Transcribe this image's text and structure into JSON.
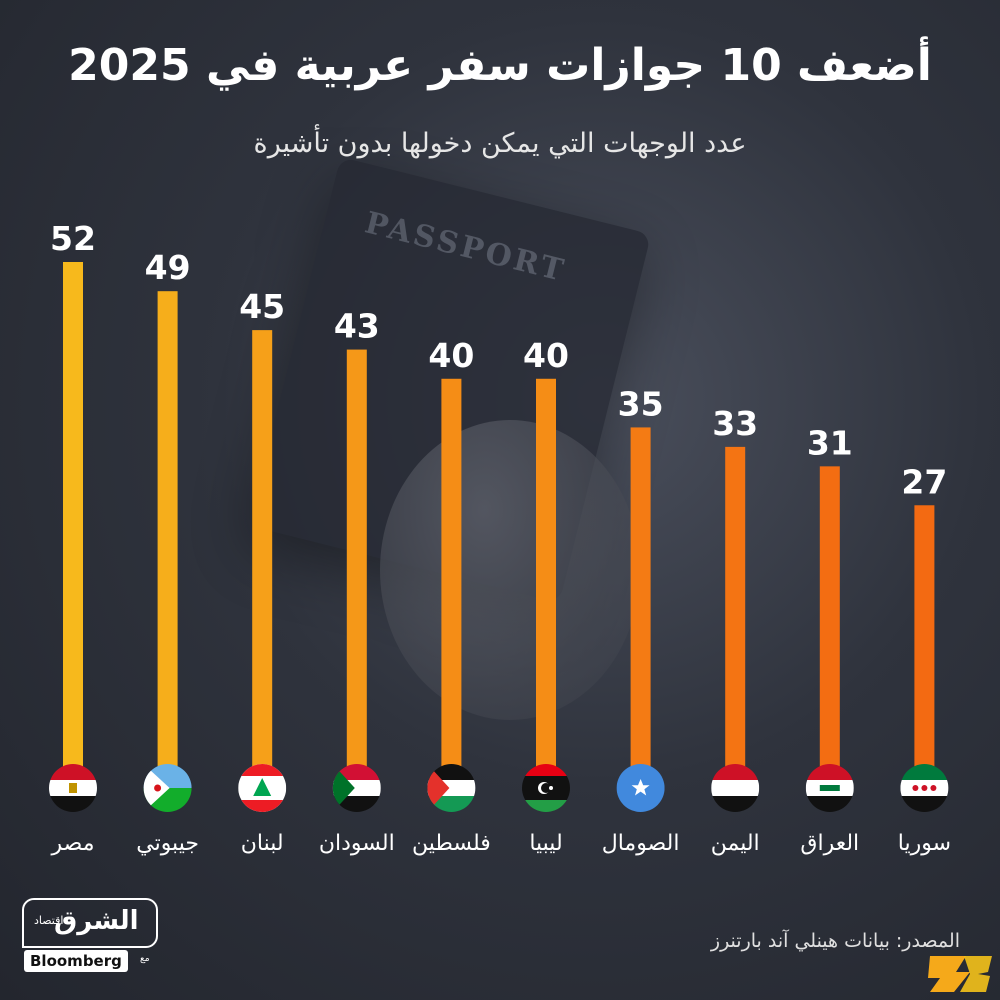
{
  "title": "أضعف 10 جوازات سفر عربية في 2025",
  "subtitle": "عدد الوجهات التي يمكن دخولها بدون تأشيرة",
  "source": "المصدر: بيانات هينلي آند بارتنرز",
  "background": {
    "passport_text": "PASSPORT"
  },
  "logo": {
    "main": "الشرق",
    "sub": "اقتصاد",
    "with": "مع",
    "partner": "Bloomberg"
  },
  "chart_data": {
    "type": "bar",
    "title": "أضعف 10 جوازات سفر عربية في 2025",
    "subtitle": "عدد الوجهات التي يمكن دخولها بدون تأشيرة",
    "categories": [
      "مصر",
      "جيبوتي",
      "لبنان",
      "السودان",
      "فلسطين",
      "ليبيا",
      "الصومال",
      "اليمن",
      "العراق",
      "سوريا"
    ],
    "values": [
      52,
      49,
      45,
      43,
      40,
      40,
      35,
      33,
      31,
      27
    ],
    "flags": [
      "egypt-flag",
      "djibouti-flag",
      "lebanon-flag",
      "sudan-flag",
      "palestine-flag",
      "libya-flag",
      "somalia-flag",
      "yemen-flag",
      "iraq-flag",
      "syria-flag"
    ],
    "ylim": [
      0,
      52
    ],
    "colors": {
      "high": "#f7b91c",
      "low": "#f36a12"
    },
    "grid": false,
    "legend": "none"
  }
}
